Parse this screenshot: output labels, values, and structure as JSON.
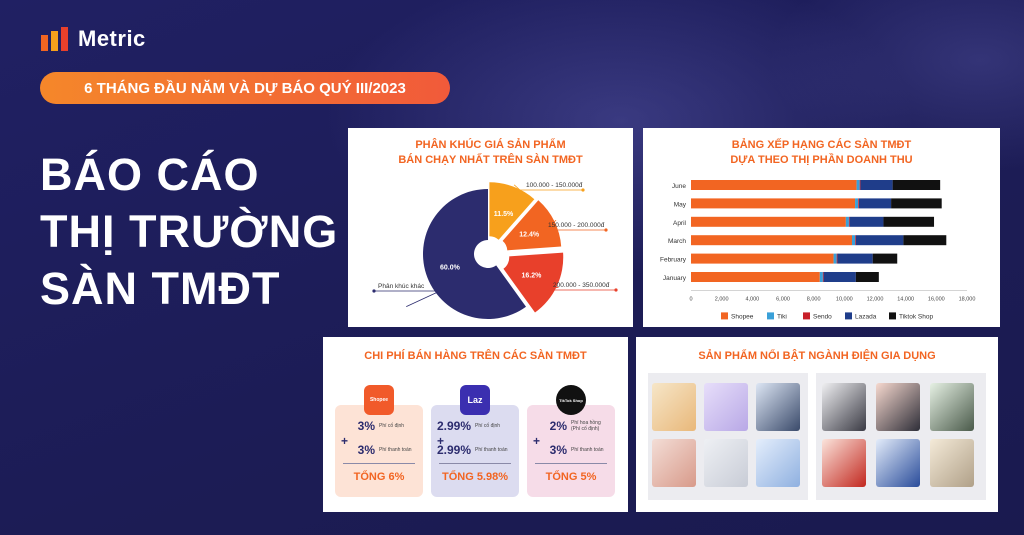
{
  "header": {
    "brand": "Metric",
    "pill": "6 THÁNG ĐẦU NĂM VÀ DỰ BÁO QUÝ III/2023",
    "title_lines": [
      "BÁO CÁO",
      "THỊ TRƯỜNG",
      "SÀN TMĐT"
    ]
  },
  "pie_card": {
    "title_line1": "PHÂN KHÚC GIÁ SẢN PHẨM",
    "title_line2": "BÁN CHẠY NHẤT TRÊN SÀN TMĐT"
  },
  "bar_card": {
    "title_line1": "BẢNG XẾP HẠNG CÁC SÀN TMĐT",
    "title_line2": "DỰA THEO THỊ PHẦN DOANH THU"
  },
  "fee_card": {
    "title": "CHI PHÍ BÁN HÀNG TRÊN CÁC SÀN TMĐT",
    "platforms": [
      {
        "logo_text": "Shopee",
        "row1_pct": "3%",
        "row1_label": "Phí cố định",
        "row2_pct": "3%",
        "row2_label": "Phí thanh toán",
        "total": "TỔNG 6%",
        "box_color": "#fde3d6",
        "logo_color": "#f15a2a"
      },
      {
        "logo_text": "Laz",
        "row1_pct": "2.99%",
        "row1_label": "Phí cố định",
        "row2_pct": "2.99%",
        "row2_label": "Phí thanh toán",
        "total": "TỔNG 5.98%",
        "box_color": "#dcdcf0",
        "logo_color": "#3b2fb0"
      },
      {
        "logo_text": "TikTok Shop",
        "row1_pct": "2%",
        "row1_label": "Phí hoa hồng (Phí cố định)",
        "row2_pct": "3%",
        "row2_label": "Phí thanh toán",
        "total": "TỔNG 5%",
        "box_color": "#f6dce8",
        "logo_color": "#111111"
      }
    ]
  },
  "prod_card": {
    "title": "SẢN PHẨM NỔI BẬT NGÀNH ĐIỆN GIA DỤNG"
  },
  "chart_data": [
    {
      "type": "pie",
      "title": "PHÂN KHÚC GIÁ SẢN PHẨM BÁN CHẠY NHẤT TRÊN SÀN TMĐT",
      "slices": [
        {
          "label": "100.000 - 150.000đ",
          "value": 11.5,
          "value_label": "11.5%",
          "color": "#f7a01c"
        },
        {
          "label": "150.000 - 200.000đ",
          "value": 12.4,
          "value_label": "12.4%",
          "color": "#f26522"
        },
        {
          "label": "200.000 - 350.000đ",
          "value": 16.2,
          "value_label": "16.2%",
          "color": "#e8402b"
        },
        {
          "label": "Phân khúc khác",
          "value": 60.0,
          "value_label": "60.0%",
          "color": "#2c2c6e"
        }
      ],
      "donut": true
    },
    {
      "type": "bar",
      "orientation": "horizontal",
      "stacked": true,
      "title": "BẢNG XẾP HẠNG CÁC SÀN TMĐT DỰA THEO THỊ PHẦN DOANH THU",
      "categories": [
        "June",
        "May",
        "April",
        "March",
        "February",
        "January"
      ],
      "xlim": [
        0,
        18000
      ],
      "xticks": [
        "0",
        "2,000",
        "4,000",
        "6,000",
        "8,000",
        "10,000",
        "12,000",
        "14,000",
        "16,000",
        "18,000"
      ],
      "series": [
        {
          "name": "Shopee",
          "color": "#f26522",
          "values": [
            10800,
            10700,
            10100,
            10500,
            9300,
            8400
          ]
        },
        {
          "name": "Tiki",
          "color": "#3aa0d8",
          "values": [
            200,
            200,
            200,
            200,
            200,
            200
          ]
        },
        {
          "name": "Sendo",
          "color": "#c8202a",
          "values": [
            50,
            50,
            50,
            50,
            50,
            50
          ]
        },
        {
          "name": "Lazada",
          "color": "#1f3d8a",
          "values": [
            2100,
            2100,
            2200,
            3100,
            2300,
            2100
          ]
        },
        {
          "name": "Tiktok Shop",
          "color": "#111111",
          "values": [
            3100,
            3300,
            3300,
            2800,
            1600,
            1500
          ]
        }
      ],
      "legend": "bottom",
      "grid": false
    }
  ]
}
